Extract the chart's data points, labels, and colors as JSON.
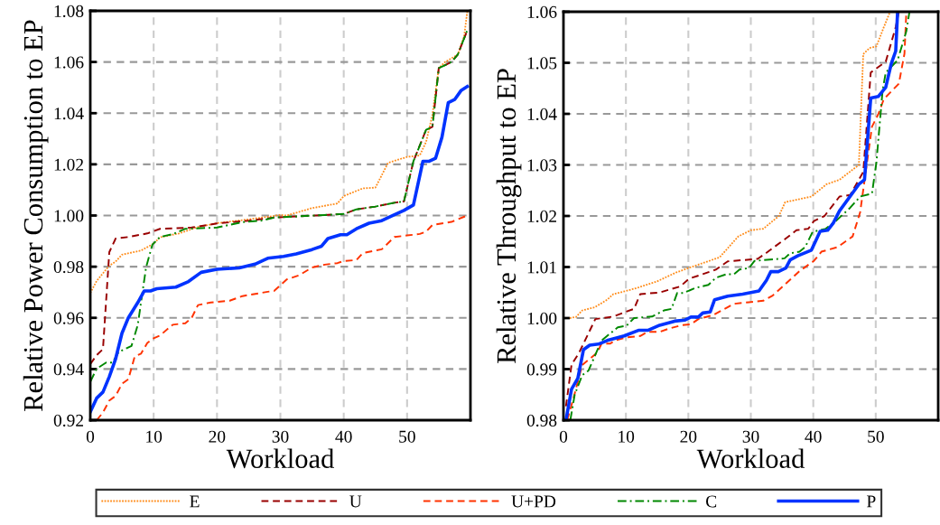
{
  "chart_data": [
    {
      "type": "line",
      "xlabel": "Workload",
      "ylabel": "Relative Power Consumption to EP",
      "xlim": [
        0,
        60
      ],
      "xticks": [
        0,
        10,
        20,
        30,
        40,
        50
      ],
      "ylim": [
        0.92,
        1.08
      ],
      "yticks": [
        {
          "value": 0.92,
          "label": "0.92"
        },
        {
          "value": 0.94,
          "label": "0.94"
        },
        {
          "value": 0.96,
          "label": "0.96"
        },
        {
          "value": 0.98,
          "label": "0.98"
        },
        {
          "value": 1.0,
          "label": "1.00"
        },
        {
          "value": 1.02,
          "label": "1.02"
        },
        {
          "value": 1.04,
          "label": "1.04"
        },
        {
          "value": 1.06,
          "label": "1.06"
        },
        {
          "value": 1.08,
          "label": "1.08"
        }
      ],
      "grid": true,
      "legend": "bottom",
      "series": [
        {
          "name": "E",
          "color": "#ff8c1a",
          "line_style": "dotted",
          "x": [
            0,
            1,
            2,
            3,
            4,
            5,
            8,
            10,
            11,
            14,
            17,
            20,
            25,
            30,
            31,
            35,
            39,
            40,
            43,
            45,
            47,
            50,
            52,
            53,
            54,
            55,
            56,
            58,
            59,
            59.5
          ],
          "values": [
            0.9697,
            0.9744,
            0.9774,
            0.9804,
            0.982,
            0.9847,
            0.9863,
            0.989,
            0.9915,
            0.993,
            0.9955,
            0.997,
            0.9985,
            1.0002,
            1.0,
            1.0029,
            1.0047,
            1.0076,
            1.0106,
            1.0109,
            1.0206,
            1.0229,
            1.0235,
            1.0288,
            1.0394,
            1.0576,
            1.06,
            1.0629,
            1.07,
            1.0797
          ]
        },
        {
          "name": "U",
          "color": "#990000",
          "line_style": "dashed",
          "x": [
            0,
            1,
            2,
            3,
            4,
            6,
            9,
            11,
            16,
            20,
            25,
            29,
            33,
            37,
            40,
            42,
            45,
            48,
            49.5,
            51,
            53,
            54,
            55,
            57,
            58,
            59.5
          ],
          "values": [
            0.9419,
            0.9454,
            0.9478,
            0.9857,
            0.991,
            0.9916,
            0.993,
            0.9948,
            0.9953,
            0.9969,
            0.998,
            0.9992,
            0.9997,
            1.0002,
            1.0006,
            1.0024,
            1.0035,
            1.005,
            1.0055,
            1.0212,
            1.0335,
            1.0347,
            1.0576,
            1.06,
            1.0629,
            1.0724
          ]
        },
        {
          "name": "U+PD",
          "color": "#ff3300",
          "line_style": "dashed",
          "x": [
            1,
            2,
            3,
            4,
            5,
            6,
            7,
            8,
            9,
            10,
            11,
            13,
            15,
            16,
            17,
            19,
            22,
            24,
            28,
            29,
            31,
            33,
            35,
            37,
            39,
            40,
            42,
            43,
            46,
            48,
            50,
            52,
            53,
            54,
            57,
            59.5
          ],
          "values": [
            0.92,
            0.923,
            0.9277,
            0.9295,
            0.9342,
            0.936,
            0.9448,
            0.946,
            0.9502,
            0.952,
            0.9531,
            0.9573,
            0.9579,
            0.96,
            0.965,
            0.966,
            0.9667,
            0.9685,
            0.9702,
            0.9705,
            0.975,
            0.9767,
            0.9797,
            0.9808,
            0.9814,
            0.9822,
            0.9826,
            0.9853,
            0.9868,
            0.9916,
            0.9922,
            0.9928,
            0.9937,
            0.9963,
            0.9975,
            1.0
          ]
        },
        {
          "name": "C",
          "color": "#008800",
          "line_style": "dashdot",
          "x": [
            0,
            1,
            2.5,
            3.5,
            4.5,
            6.5,
            7.5,
            8.8,
            9.8,
            11,
            13,
            15,
            20,
            24,
            27,
            29,
            33,
            37,
            40,
            42,
            45,
            48,
            49.5,
            51,
            53,
            54,
            55,
            57,
            58,
            59.5
          ],
          "values": [
            0.935,
            0.9401,
            0.9425,
            0.9425,
            0.9467,
            0.949,
            0.9573,
            0.9797,
            0.9886,
            0.9916,
            0.9927,
            0.9948,
            0.9953,
            0.9974,
            0.998,
            0.9992,
            0.9997,
            1.0002,
            1.0006,
            1.0024,
            1.0035,
            1.005,
            1.0055,
            1.0212,
            1.0335,
            1.0347,
            1.0576,
            1.06,
            1.0629,
            1.0724
          ]
        },
        {
          "name": "P",
          "color": "#0033ff",
          "line_style": "solid",
          "x": [
            0,
            1,
            2,
            3,
            4,
            5,
            6,
            7.5,
            8.5,
            9.5,
            10.5,
            13.5,
            15.5,
            17.5,
            20,
            23.5,
            26,
            28,
            30.5,
            32.5,
            35,
            36.5,
            37.5,
            39.5,
            40.5,
            42,
            44,
            46,
            48,
            49.5,
            51,
            52.5,
            53.5,
            54.5,
            55.5,
            56.5,
            57.5,
            58.5,
            59.5
          ],
          "values": [
            0.9232,
            0.9286,
            0.931,
            0.937,
            0.944,
            0.954,
            0.96,
            0.966,
            0.9705,
            0.9705,
            0.9714,
            0.972,
            0.9742,
            0.9778,
            0.979,
            0.9795,
            0.981,
            0.9833,
            0.984,
            0.985,
            0.9867,
            0.988,
            0.991,
            0.9925,
            0.9925,
            0.9948,
            0.997,
            0.998,
            1.0003,
            1.002,
            1.0041,
            1.0212,
            1.0212,
            1.0224,
            1.0306,
            1.0441,
            1.0453,
            1.0488,
            1.0504
          ]
        }
      ]
    },
    {
      "type": "line",
      "xlabel": "Workload",
      "ylabel": "Relative Throughput to EP",
      "xlim": [
        0,
        60
      ],
      "xticks": [
        0,
        10,
        20,
        30,
        40,
        50
      ],
      "ylim": [
        0.98,
        1.06
      ],
      "yticks": [
        {
          "value": 0.98,
          "label": "0.98"
        },
        {
          "value": 0.99,
          "label": "0.99"
        },
        {
          "value": 1.0,
          "label": "1.00"
        },
        {
          "value": 1.01,
          "label": "1.01"
        },
        {
          "value": 1.02,
          "label": "1.02"
        },
        {
          "value": 1.03,
          "label": "1.03"
        },
        {
          "value": 1.04,
          "label": "1.04"
        },
        {
          "value": 1.05,
          "label": "1.05"
        },
        {
          "value": 1.06,
          "label": "1.06"
        }
      ],
      "grid": true,
      "series": [
        {
          "color": "#ff8c1a",
          "line_style": "dotted",
          "x": [
            1,
            2,
            3,
            5,
            7,
            8,
            10,
            12,
            15,
            18,
            20,
            25,
            28,
            30,
            32,
            34.5,
            35.5,
            39.7,
            42.1,
            44.2,
            47.3,
            48,
            49,
            50.1,
            51.3,
            52.3
          ],
          "values": [
            1.0,
            1.0002,
            1.0015,
            1.0021,
            1.0036,
            1.0047,
            1.0053,
            1.006,
            1.0072,
            1.0089,
            1.0098,
            1.0119,
            1.016,
            1.0172,
            1.0175,
            1.02,
            1.0227,
            1.0238,
            1.0262,
            1.0271,
            1.03,
            1.0517,
            1.0529,
            1.0532,
            1.057,
            1.06
          ]
        },
        {
          "color": "#990000",
          "line_style": "dashed",
          "x": [
            0.4,
            1.3,
            2.5,
            5.1,
            8,
            9.9,
            11.3,
            12.3,
            15.4,
            18.7,
            20.1,
            22.3,
            24.4,
            26.3,
            31.1,
            32.5,
            35.4,
            37.3,
            39.2,
            40.1,
            41.8,
            44.2,
            45.9,
            48,
            49.2,
            50.9,
            51.6,
            53.2,
            53.7
          ],
          "values": [
            0.9827,
            0.9909,
            0.9932,
            0.9998,
            1.0003,
            1.0012,
            1.0018,
            1.0047,
            1.005,
            1.0062,
            1.0077,
            1.0086,
            1.0095,
            1.0111,
            1.0116,
            1.0128,
            1.0154,
            1.0172,
            1.0175,
            1.019,
            1.02,
            1.0238,
            1.0241,
            1.0286,
            1.0481,
            1.0496,
            1.0502,
            1.057,
            1.06
          ]
        },
        {
          "color": "#ff3300",
          "line_style": "dashed",
          "x": [
            0.6,
            1.6,
            3,
            5.4,
            6.1,
            7.5,
            8.2,
            10.1,
            12.3,
            13.5,
            15.4,
            16.8,
            18.9,
            20.4,
            21.6,
            24,
            27.3,
            29.7,
            32,
            33.5,
            35.4,
            37.8,
            40.1,
            41.3,
            43.9,
            46.3,
            47.5,
            49.4,
            50.4,
            51.3,
            53.7,
            54.6,
            54.9
          ],
          "values": [
            0.98,
            0.9843,
            0.9908,
            0.9932,
            0.995,
            0.995,
            0.9956,
            0.9962,
            0.9965,
            0.9973,
            0.9973,
            0.9979,
            0.9986,
            0.9988,
            0.9998,
            1.0006,
            1.0028,
            1.0031,
            1.0034,
            1.0044,
            1.0065,
            1.0092,
            1.0112,
            1.013,
            1.0139,
            1.016,
            1.0207,
            1.0375,
            1.0399,
            1.0429,
            1.0459,
            1.0518,
            1.06
          ]
        },
        {
          "color": "#008800",
          "line_style": "dashdot",
          "x": [
            1.1,
            1.8,
            3,
            4,
            6.1,
            8.7,
            10.1,
            11.3,
            14.2,
            16.1,
            17.3,
            18.2,
            19.2,
            21.1,
            23.2,
            24.4,
            26.1,
            27.3,
            28.2,
            29.7,
            30.6,
            35.4,
            36.3,
            37.8,
            38.7,
            39.9,
            42,
            43.5,
            45.9,
            47.5,
            49.4,
            50.1,
            51.1,
            51.6,
            53.5,
            54.9,
            55.4
          ],
          "values": [
            0.98,
            0.985,
            0.9888,
            0.9897,
            0.9956,
            0.9982,
            0.9985,
            1.0,
            1.0003,
            1.0015,
            1.0018,
            1.0049,
            1.0049,
            1.0059,
            1.0065,
            1.0079,
            1.0086,
            1.0086,
            1.0095,
            1.0098,
            1.0112,
            1.0117,
            1.0127,
            1.013,
            1.0139,
            1.0169,
            1.0175,
            1.0189,
            1.0216,
            1.0238,
            1.0244,
            1.0304,
            1.0446,
            1.0481,
            1.0505,
            1.0562,
            1.06
          ]
        },
        {
          "color": "#0033ff",
          "line_style": "solid",
          "x": [
            0.4,
            1.3,
            2.3,
            3.2,
            4.2,
            5.6,
            7,
            9.7,
            12,
            13.5,
            15.4,
            17.8,
            19.4,
            20.4,
            21.6,
            22.3,
            23.5,
            24.2,
            26.3,
            28.7,
            31.3,
            32.5,
            33.2,
            34.4,
            35.6,
            36.3,
            37.5,
            39.7,
            41.1,
            42.3,
            43.2,
            44.2,
            47.3,
            48.2,
            49.2,
            50.4,
            51.6,
            52.5,
            53.2,
            53.5
          ],
          "values": [
            0.98,
            0.9861,
            0.9882,
            0.9938,
            0.9947,
            0.9949,
            0.9956,
            0.9965,
            0.9976,
            0.9976,
            0.9986,
            0.9994,
            0.9996,
            1.0002,
            1.0002,
            1.001,
            1.0012,
            1.0036,
            1.0043,
            1.0047,
            1.0053,
            1.0074,
            1.0091,
            1.0091,
            1.0098,
            1.0114,
            1.0122,
            1.0133,
            1.017,
            1.0172,
            1.0186,
            1.021,
            1.0262,
            1.0271,
            1.0431,
            1.0434,
            1.0452,
            1.0499,
            1.0523,
            1.06
          ]
        }
      ]
    }
  ]
}
